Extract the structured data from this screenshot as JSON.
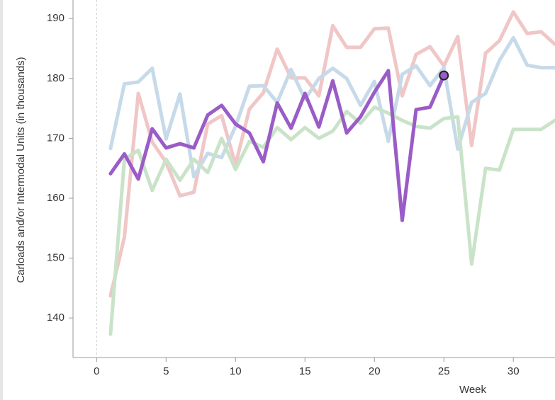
{
  "chart_data": {
    "type": "line",
    "y_label": "Carloads and/or Intermodal Units (in thousands)",
    "x_label": "Week",
    "x": [
      1,
      2,
      3,
      4,
      5,
      6,
      7,
      8,
      9,
      10,
      11,
      12,
      13,
      14,
      15,
      16,
      17,
      18,
      19,
      20,
      21,
      22,
      23,
      24,
      25,
      26,
      27,
      28,
      29,
      30,
      31,
      32,
      33
    ],
    "series": [
      {
        "color": "#f0c6c6",
        "values": [
          143.7,
          153.5,
          177.5,
          169.4,
          166.0,
          160.4,
          161.0,
          172.4,
          173.8,
          165.6,
          174.9,
          177.6,
          184.9,
          180.1,
          180.1,
          177.1,
          188.8,
          185.2,
          185.2,
          188.3,
          188.4,
          177.1,
          184.0,
          185.3,
          182.1,
          187.0,
          168.8,
          184.2,
          186.3,
          191.1,
          187.5,
          187.8,
          185.7
        ]
      },
      {
        "color": "#c6dae9",
        "values": [
          168.3,
          179.1,
          179.4,
          181.7,
          169.9,
          177.4,
          163.6,
          167.5,
          166.8,
          172.0,
          178.7,
          178.8,
          176.0,
          181.5,
          176.5,
          180.0,
          181.7,
          180.0,
          175.5,
          179.5,
          169.5,
          180.7,
          182.1,
          178.8,
          181.8,
          168.2,
          176.0,
          177.5,
          183.0,
          186.8,
          182.2,
          181.8,
          181.8
        ]
      },
      {
        "color": "#c9e3c9",
        "values": [
          137.3,
          166.5,
          168.0,
          161.3,
          166.5,
          163.0,
          166.5,
          164.3,
          170.0,
          164.8,
          169.5,
          168.5,
          171.8,
          169.8,
          171.8,
          170.0,
          171.2,
          174.5,
          172.5,
          175.2,
          174.2,
          173.0,
          172.0,
          171.7,
          173.3,
          173.6,
          149.0,
          165.0,
          164.7,
          171.5,
          171.5,
          171.5,
          173.0
        ]
      },
      {
        "color": "#9a5cc6",
        "highlight_last": true,
        "values": [
          164.1,
          167.4,
          163.2,
          171.6,
          168.4,
          169.1,
          168.4,
          173.9,
          175.5,
          172.4,
          170.9,
          166.1,
          175.9,
          171.7,
          177.5,
          171.9,
          179.6,
          170.9,
          173.6,
          177.7,
          181.3,
          156.3,
          174.8,
          175.2,
          180.5,
          null,
          null,
          null,
          null,
          null,
          null,
          null,
          null
        ]
      }
    ],
    "xlim": [
      -1.7,
      33
    ],
    "ylim": [
      133.4,
      193.1
    ],
    "xticks": [
      0,
      5,
      10,
      15,
      20,
      25,
      30
    ],
    "yticks": [
      140,
      150,
      160,
      170,
      180,
      190
    ],
    "zero_line": true,
    "grid": false
  }
}
